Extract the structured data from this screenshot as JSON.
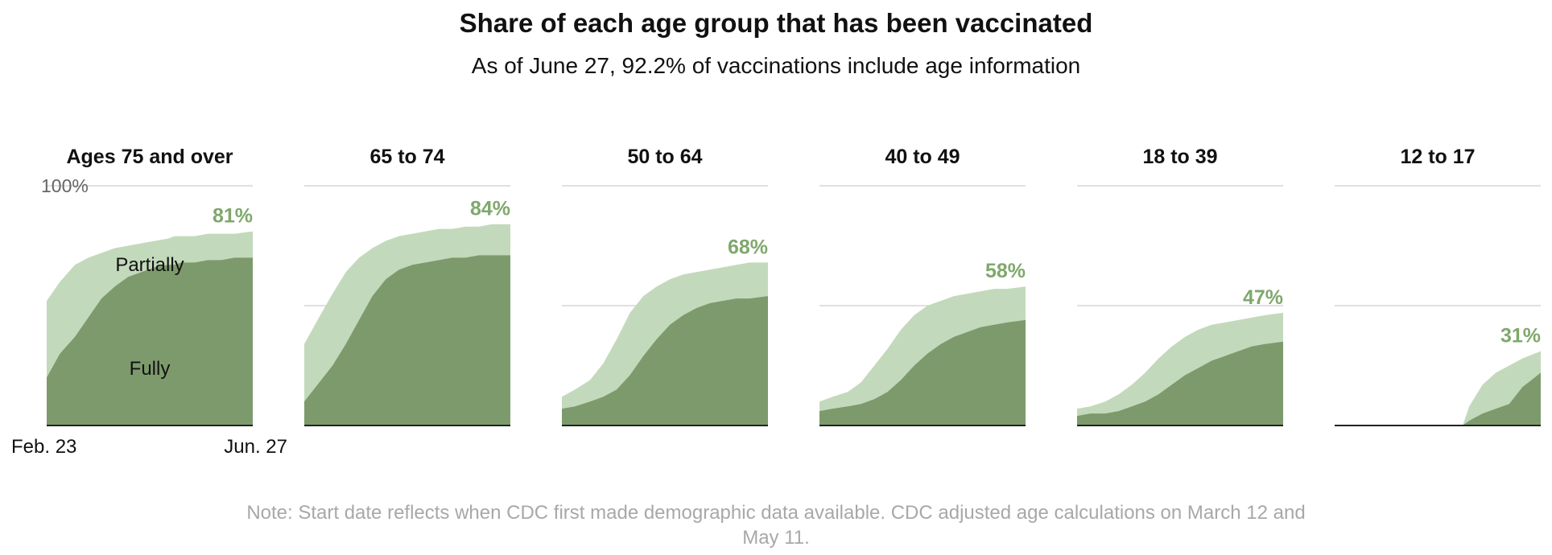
{
  "chart_data": {
    "type": "area",
    "title": "Share of each age group that has been vaccinated",
    "subtitle": "As of June 27, 92.2% of vaccinations include age information",
    "x_range": [
      "Feb. 23",
      "Jun. 27"
    ],
    "x_start_label": "Feb. 23",
    "x_end_label": "Jun. 27",
    "ylim": [
      0,
      100
    ],
    "y_top_label": "100%",
    "gridlines": [
      50,
      100
    ],
    "legend": {
      "partially": "Partially",
      "fully": "Fully"
    },
    "colors": {
      "partially": "#c3d9bb",
      "fully": "#7d9a6c",
      "label": "#7fa86c",
      "grid": "#d6d6d6",
      "baseline": "#222222"
    },
    "note": "Note: Start date reflects when CDC first made demographic data available. CDC adjusted age calculations on March 12 and May 11.",
    "panels": [
      {
        "title": "Ages 75 and over",
        "final_label": "81%",
        "x": [
          "Feb. 23",
          "Mar. 3",
          "Mar. 12",
          "Mar. 20",
          "Mar. 28",
          "Apr. 5",
          "Apr. 13",
          "Apr. 21",
          "Apr. 29",
          "May 7",
          "May 11",
          "May 15",
          "May 23",
          "May 31",
          "Jun. 8",
          "Jun. 16",
          "Jun. 27"
        ],
        "partially": [
          52,
          60,
          67,
          70,
          72,
          74,
          75,
          76,
          77,
          78,
          79,
          79,
          79,
          80,
          80,
          80,
          81
        ],
        "fully": [
          20,
          30,
          37,
          45,
          53,
          58,
          62,
          64,
          66,
          67,
          67,
          68,
          68,
          69,
          69,
          70,
          70
        ]
      },
      {
        "title": "65 to 74",
        "final_label": "84%",
        "x": [
          "Feb. 23",
          "Mar. 3",
          "Mar. 12",
          "Mar. 20",
          "Mar. 28",
          "Apr. 5",
          "Apr. 13",
          "Apr. 21",
          "Apr. 29",
          "May 7",
          "May 15",
          "May 23",
          "May 31",
          "Jun. 8",
          "Jun. 16",
          "Jun. 27"
        ],
        "partially": [
          34,
          44,
          55,
          64,
          70,
          74,
          77,
          79,
          80,
          81,
          82,
          82,
          83,
          83,
          84,
          84
        ],
        "fully": [
          10,
          17,
          25,
          34,
          44,
          54,
          61,
          65,
          67,
          68,
          69,
          70,
          70,
          71,
          71,
          71
        ]
      },
      {
        "title": "50 to 64",
        "final_label": "68%",
        "x": [
          "Feb. 23",
          "Mar. 3",
          "Mar. 12",
          "Mar. 20",
          "Mar. 28",
          "Apr. 5",
          "Apr. 13",
          "Apr. 21",
          "Apr. 29",
          "May 7",
          "May 15",
          "May 23",
          "May 31",
          "Jun. 8",
          "Jun. 16",
          "Jun. 27"
        ],
        "partially": [
          12,
          15,
          19,
          26,
          36,
          47,
          54,
          58,
          61,
          63,
          64,
          65,
          66,
          67,
          68,
          68
        ],
        "fully": [
          7,
          8,
          10,
          12,
          15,
          21,
          29,
          36,
          42,
          46,
          49,
          51,
          52,
          53,
          53,
          54
        ]
      },
      {
        "title": "40 to 49",
        "final_label": "58%",
        "x": [
          "Feb. 23",
          "Mar. 3",
          "Mar. 12",
          "Mar. 20",
          "Mar. 28",
          "Apr. 5",
          "Apr. 13",
          "Apr. 21",
          "Apr. 29",
          "May 7",
          "May 15",
          "May 23",
          "May 31",
          "Jun. 8",
          "Jun. 16",
          "Jun. 27"
        ],
        "partially": [
          10,
          12,
          14,
          18,
          25,
          32,
          40,
          46,
          50,
          52,
          54,
          55,
          56,
          57,
          57,
          58
        ],
        "fully": [
          6,
          7,
          8,
          9,
          11,
          14,
          19,
          25,
          30,
          34,
          37,
          39,
          41,
          42,
          43,
          44
        ]
      },
      {
        "title": "18 to 39",
        "final_label": "47%",
        "x": [
          "Feb. 23",
          "Mar. 3",
          "Mar. 12",
          "Mar. 20",
          "Mar. 28",
          "Apr. 5",
          "Apr. 13",
          "Apr. 21",
          "Apr. 29",
          "May 7",
          "May 15",
          "May 23",
          "May 31",
          "Jun. 8",
          "Jun. 16",
          "Jun. 27"
        ],
        "partially": [
          7,
          8,
          10,
          13,
          17,
          22,
          28,
          33,
          37,
          40,
          42,
          43,
          44,
          45,
          46,
          47
        ],
        "fully": [
          4,
          5,
          5,
          6,
          8,
          10,
          13,
          17,
          21,
          24,
          27,
          29,
          31,
          33,
          34,
          35
        ]
      },
      {
        "title": "12 to 17",
        "final_label": "31%",
        "x": [
          "Feb. 23",
          "May 11",
          "May 15",
          "May 23",
          "May 31",
          "Jun. 8",
          "Jun. 16",
          "Jun. 27"
        ],
        "partially": [
          0,
          0,
          8,
          17,
          22,
          25,
          28,
          31
        ],
        "fully": [
          0,
          0,
          2,
          5,
          7,
          9,
          16,
          22
        ]
      }
    ]
  }
}
